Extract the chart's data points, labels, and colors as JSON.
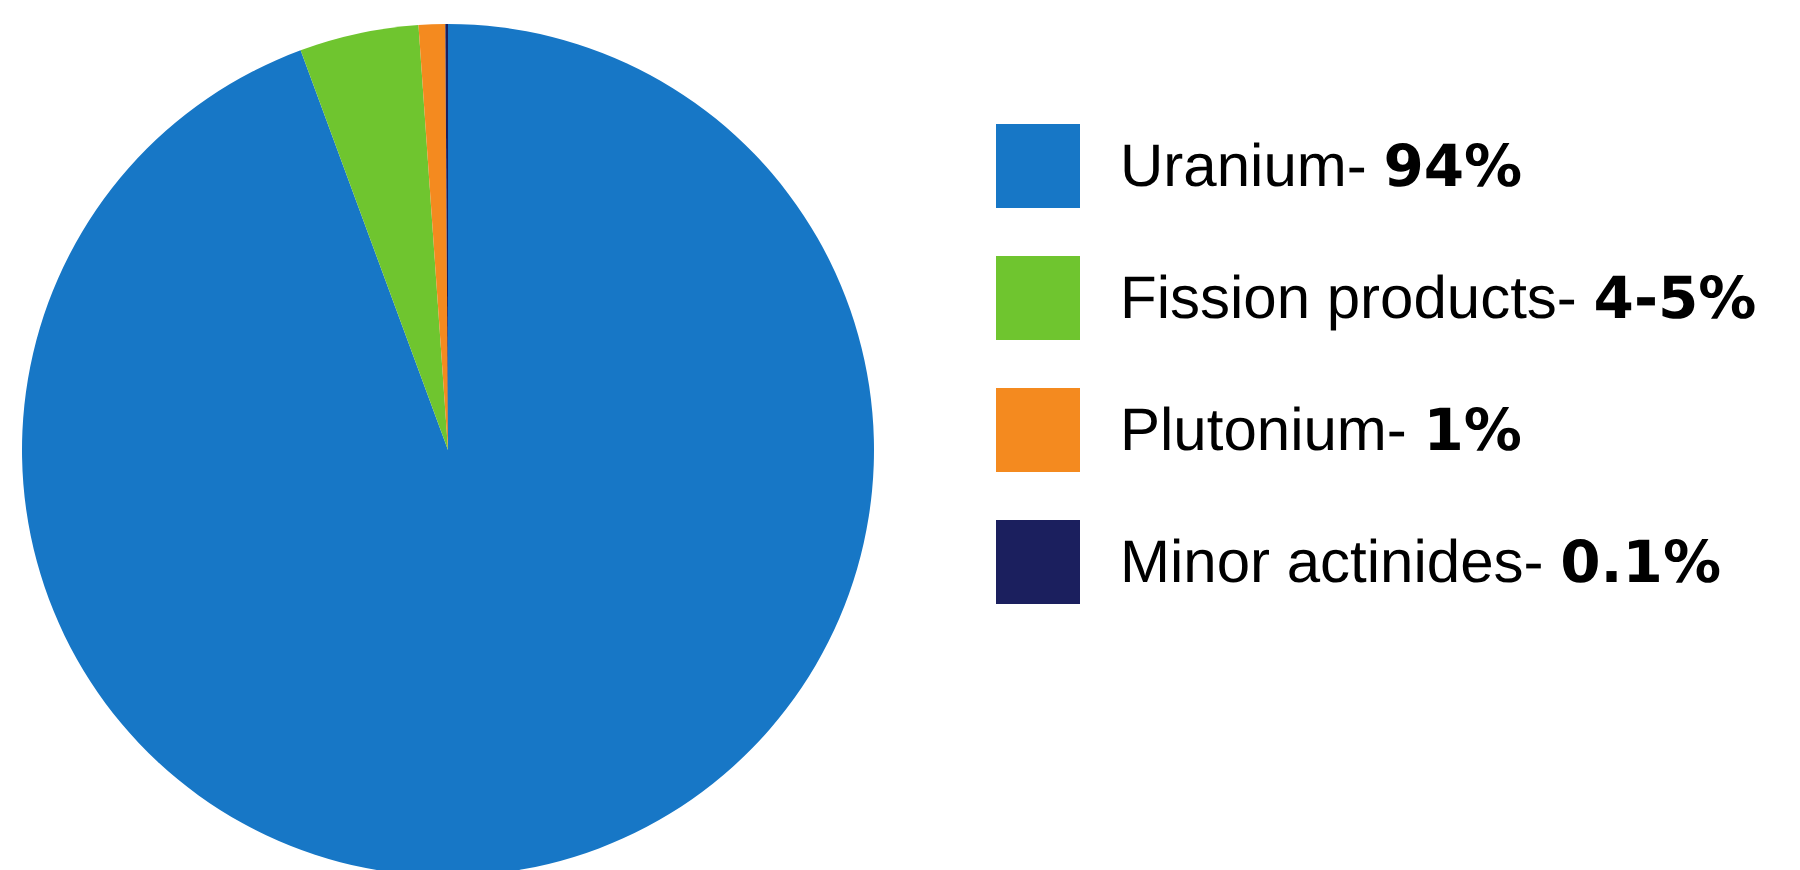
{
  "chart_data": {
    "type": "pie",
    "categories": [
      "Uranium-",
      "Fission products-",
      "Plutonium-",
      "Minor actinides-"
    ],
    "values": [
      94,
      4.5,
      1,
      0.1
    ],
    "value_labels": [
      "94%",
      "4-5%",
      "1%",
      "0.1%"
    ],
    "colors": [
      "#1777c6",
      "#6fc52f",
      "#f48a1f",
      "#1b1f5e"
    ],
    "legend": "right"
  }
}
